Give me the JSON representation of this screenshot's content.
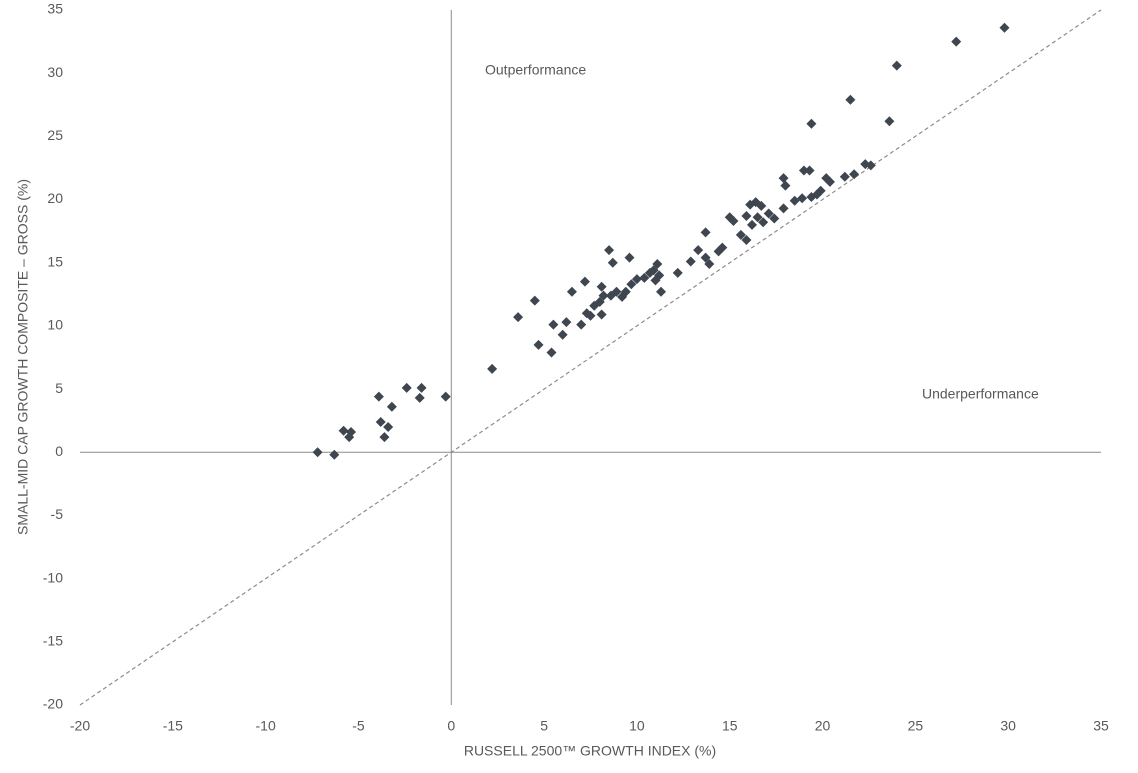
{
  "chart_data": {
    "type": "scatter",
    "x_label": "RUSSELL 2500™ GROWTH INDEX (%)",
    "y_label": "SMALL-MID CAP GROWTH COMPOSITE – GROSS (%)",
    "annotations": [
      "Outperformance",
      "Underperformance"
    ],
    "color": "#3f4650",
    "xlim": [
      -20,
      35
    ],
    "ylim": [
      -20,
      35
    ],
    "xticks": [
      -20,
      -15,
      -10,
      -5,
      0,
      5,
      10,
      15,
      20,
      25,
      30,
      35
    ],
    "yticks": [
      -20,
      -15,
      -10,
      -5,
      0,
      5,
      10,
      15,
      20,
      25,
      30,
      35
    ],
    "x": [
      -7.2,
      -6.3,
      -5.8,
      -5.5,
      -5.4,
      -3.9,
      -3.8,
      -3.6,
      -3.4,
      -3.2,
      -2.4,
      -1.7,
      -1.6,
      -0.3,
      2.2,
      3.6,
      4.5,
      4.7,
      5.4,
      5.5,
      6.0,
      6.2,
      6.5,
      7.0,
      7.2,
      7.3,
      7.5,
      7.7,
      8.0,
      8.1,
      8.1,
      8.2,
      8.5,
      8.6,
      8.7,
      8.9,
      9.2,
      9.4,
      9.6,
      9.7,
      10.0,
      10.4,
      10.7,
      10.9,
      11.0,
      11.1,
      11.2,
      11.3,
      12.2,
      12.9,
      13.3,
      13.7,
      13.7,
      13.9,
      14.4,
      14.6,
      15.0,
      15.2,
      15.6,
      15.9,
      15.9,
      16.1,
      16.2,
      16.4,
      16.5,
      16.7,
      16.8,
      17.1,
      17.4,
      17.9,
      17.9,
      18.0,
      18.5,
      18.9,
      19.0,
      19.3,
      19.4,
      19.4,
      19.7,
      19.9,
      20.2,
      20.4,
      21.2,
      21.5,
      21.7,
      22.3,
      22.6,
      23.6,
      24.0,
      27.2,
      29.8
    ],
    "y": [
      0.0,
      -0.2,
      1.7,
      1.2,
      1.6,
      4.4,
      2.4,
      1.2,
      2.0,
      3.6,
      5.1,
      4.3,
      5.1,
      4.4,
      6.6,
      10.7,
      12.0,
      8.5,
      7.9,
      10.1,
      9.3,
      10.3,
      12.7,
      10.1,
      13.5,
      11.0,
      10.8,
      11.6,
      11.9,
      13.1,
      10.9,
      12.4,
      16.0,
      12.4,
      15.0,
      12.7,
      12.3,
      12.7,
      15.4,
      13.3,
      13.7,
      13.8,
      14.2,
      14.4,
      13.6,
      14.9,
      14.0,
      12.7,
      14.2,
      15.1,
      16.0,
      17.4,
      15.4,
      14.9,
      15.9,
      16.2,
      18.6,
      18.3,
      17.2,
      16.8,
      18.7,
      19.6,
      18.0,
      19.8,
      18.6,
      19.5,
      18.2,
      18.9,
      18.5,
      19.3,
      21.7,
      21.1,
      19.9,
      20.1,
      22.3,
      22.3,
      26.0,
      20.2,
      20.4,
      20.7,
      21.7,
      21.4,
      21.8,
      27.9,
      22.0,
      22.8,
      22.7,
      26.2,
      30.6,
      32.5,
      33.6
    ]
  }
}
